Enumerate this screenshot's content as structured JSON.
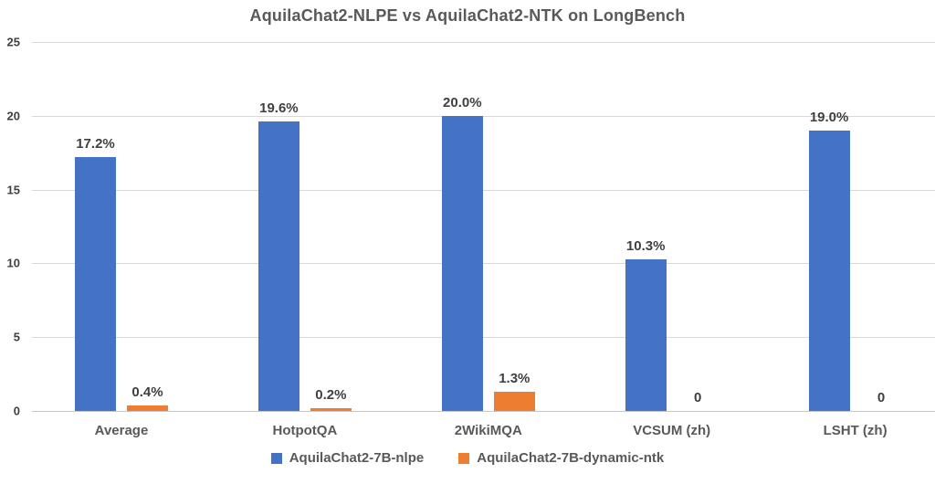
{
  "chart_data": {
    "type": "bar",
    "title": "AquilaChat2-NLPE vs AquilaChat2-NTK on LongBench",
    "categories": [
      "Average",
      "HotpotQA",
      "2WikiMQA",
      "VCSUM (zh)",
      "LSHT (zh)"
    ],
    "series": [
      {
        "name": "AquilaChat2-7B-nlpe",
        "color": "#4472C4",
        "values": [
          17.2,
          19.6,
          20.0,
          10.3,
          19.0
        ],
        "labels": [
          "17.2%",
          "19.6%",
          "20.0%",
          "10.3%",
          "19.0%"
        ]
      },
      {
        "name": "AquilaChat2-7B-dynamic-ntk",
        "color": "#ED7D31",
        "values": [
          0.4,
          0.2,
          1.3,
          0,
          0
        ],
        "labels": [
          "0.4%",
          "0.2%",
          "1.3%",
          "0",
          "0"
        ]
      }
    ],
    "xlabel": "",
    "ylabel": "",
    "ylim": [
      0,
      25
    ],
    "y_ticks": [
      0,
      5,
      10,
      15,
      20,
      25
    ],
    "grid": true,
    "legend_position": "bottom",
    "background_color": "#FFFFFF",
    "gridline_color": "#D9D9D9",
    "text_color": "#595959",
    "value_label_color": "#404040"
  }
}
